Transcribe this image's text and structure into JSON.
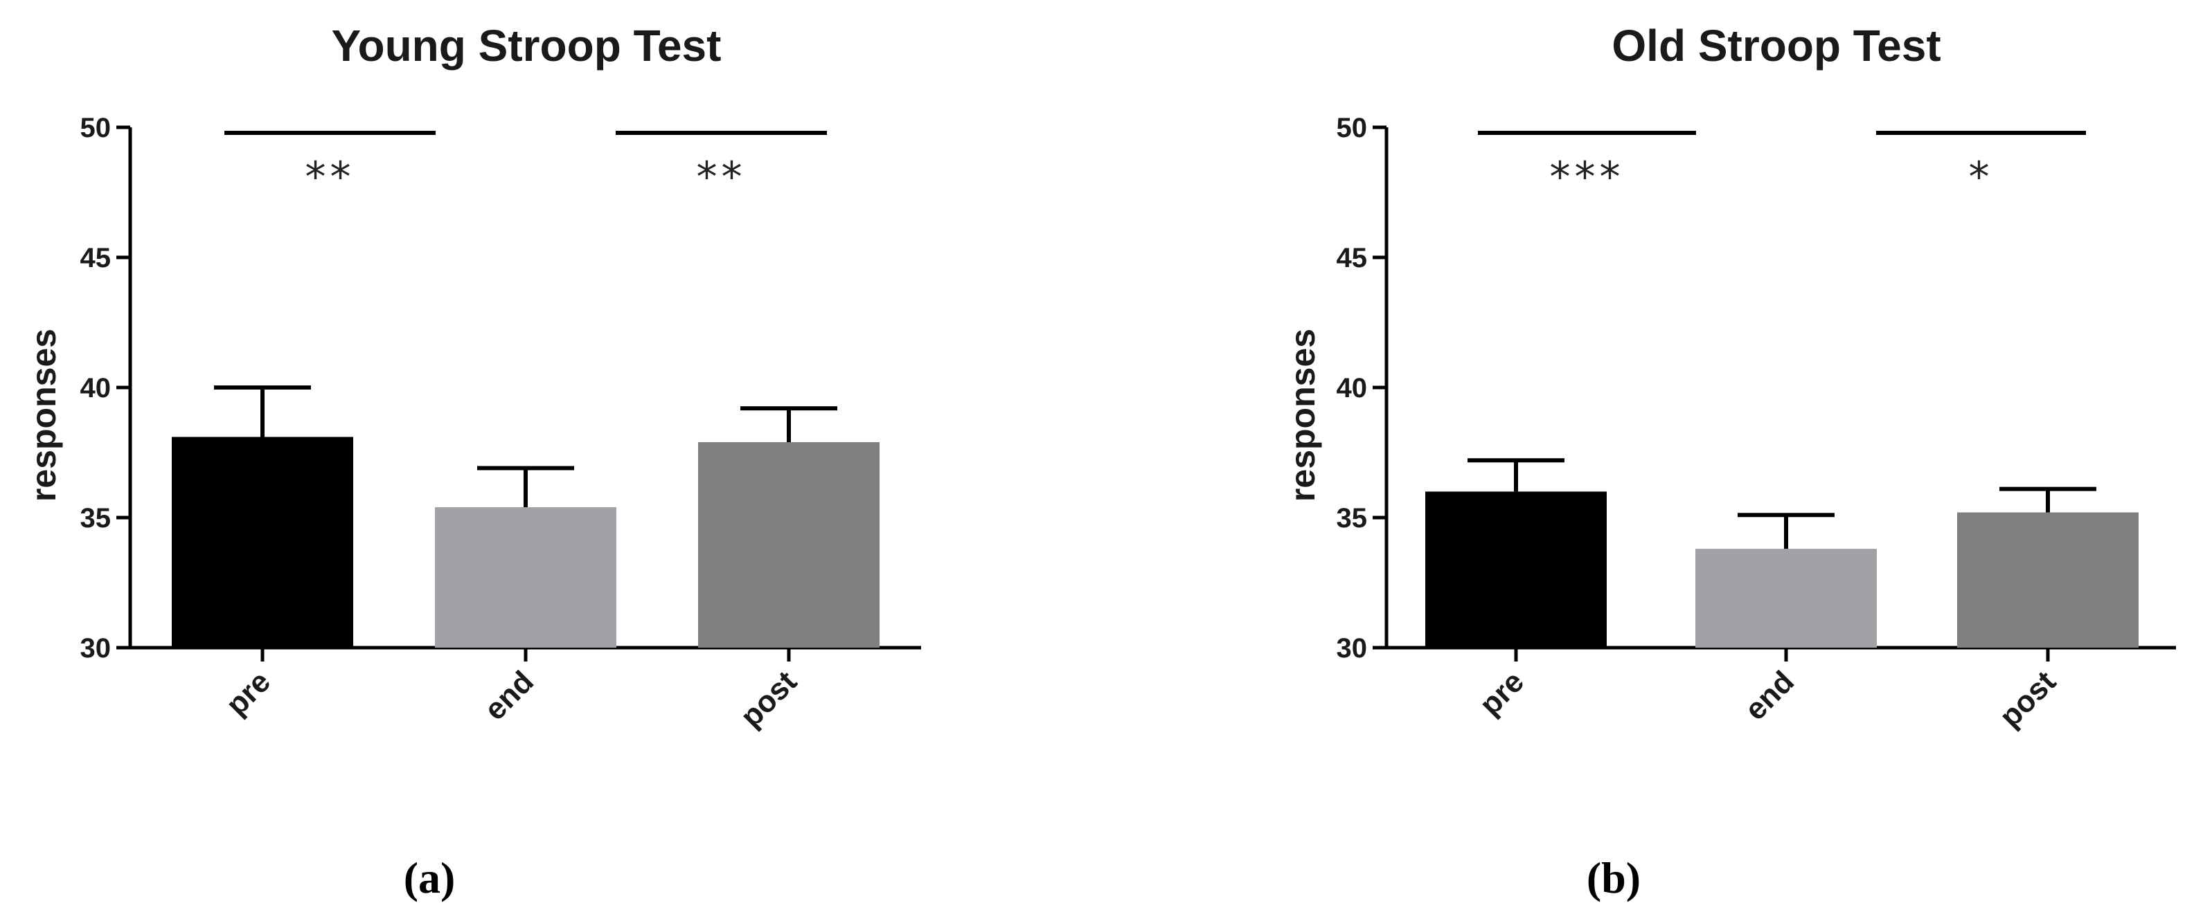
{
  "chart_data": [
    {
      "type": "bar",
      "title": "Young Stroop Test",
      "ylabel": "responses",
      "xlabel": "",
      "ylim": [
        30,
        50
      ],
      "yticks": [
        30,
        35,
        40,
        45,
        50
      ],
      "categories": [
        "pre",
        "end",
        "post"
      ],
      "values": [
        38.1,
        35.4,
        37.9
      ],
      "errors": [
        1.9,
        1.5,
        1.3
      ],
      "bar_colors": [
        "#000000",
        "#a2a2a6",
        "#808080"
      ],
      "significance": [
        {
          "from": "pre",
          "to": "end",
          "label": "**"
        },
        {
          "from": "end",
          "to": "post",
          "label": "**"
        }
      ],
      "panel_label": "(a)",
      "grid": false
    },
    {
      "type": "bar",
      "title": "Old Stroop Test",
      "ylabel": "responses",
      "xlabel": "",
      "ylim": [
        30,
        50
      ],
      "yticks": [
        30,
        35,
        40,
        45,
        50
      ],
      "categories": [
        "pre",
        "end",
        "post"
      ],
      "values": [
        36.0,
        33.8,
        35.2
      ],
      "errors": [
        1.2,
        1.3,
        0.9
      ],
      "bar_colors": [
        "#000000",
        "#a2a2a6",
        "#808080"
      ],
      "significance": [
        {
          "from": "pre",
          "to": "end",
          "label": "***"
        },
        {
          "from": "end",
          "to": "post",
          "label": "*"
        }
      ],
      "panel_label": "(b)",
      "grid": false
    }
  ]
}
